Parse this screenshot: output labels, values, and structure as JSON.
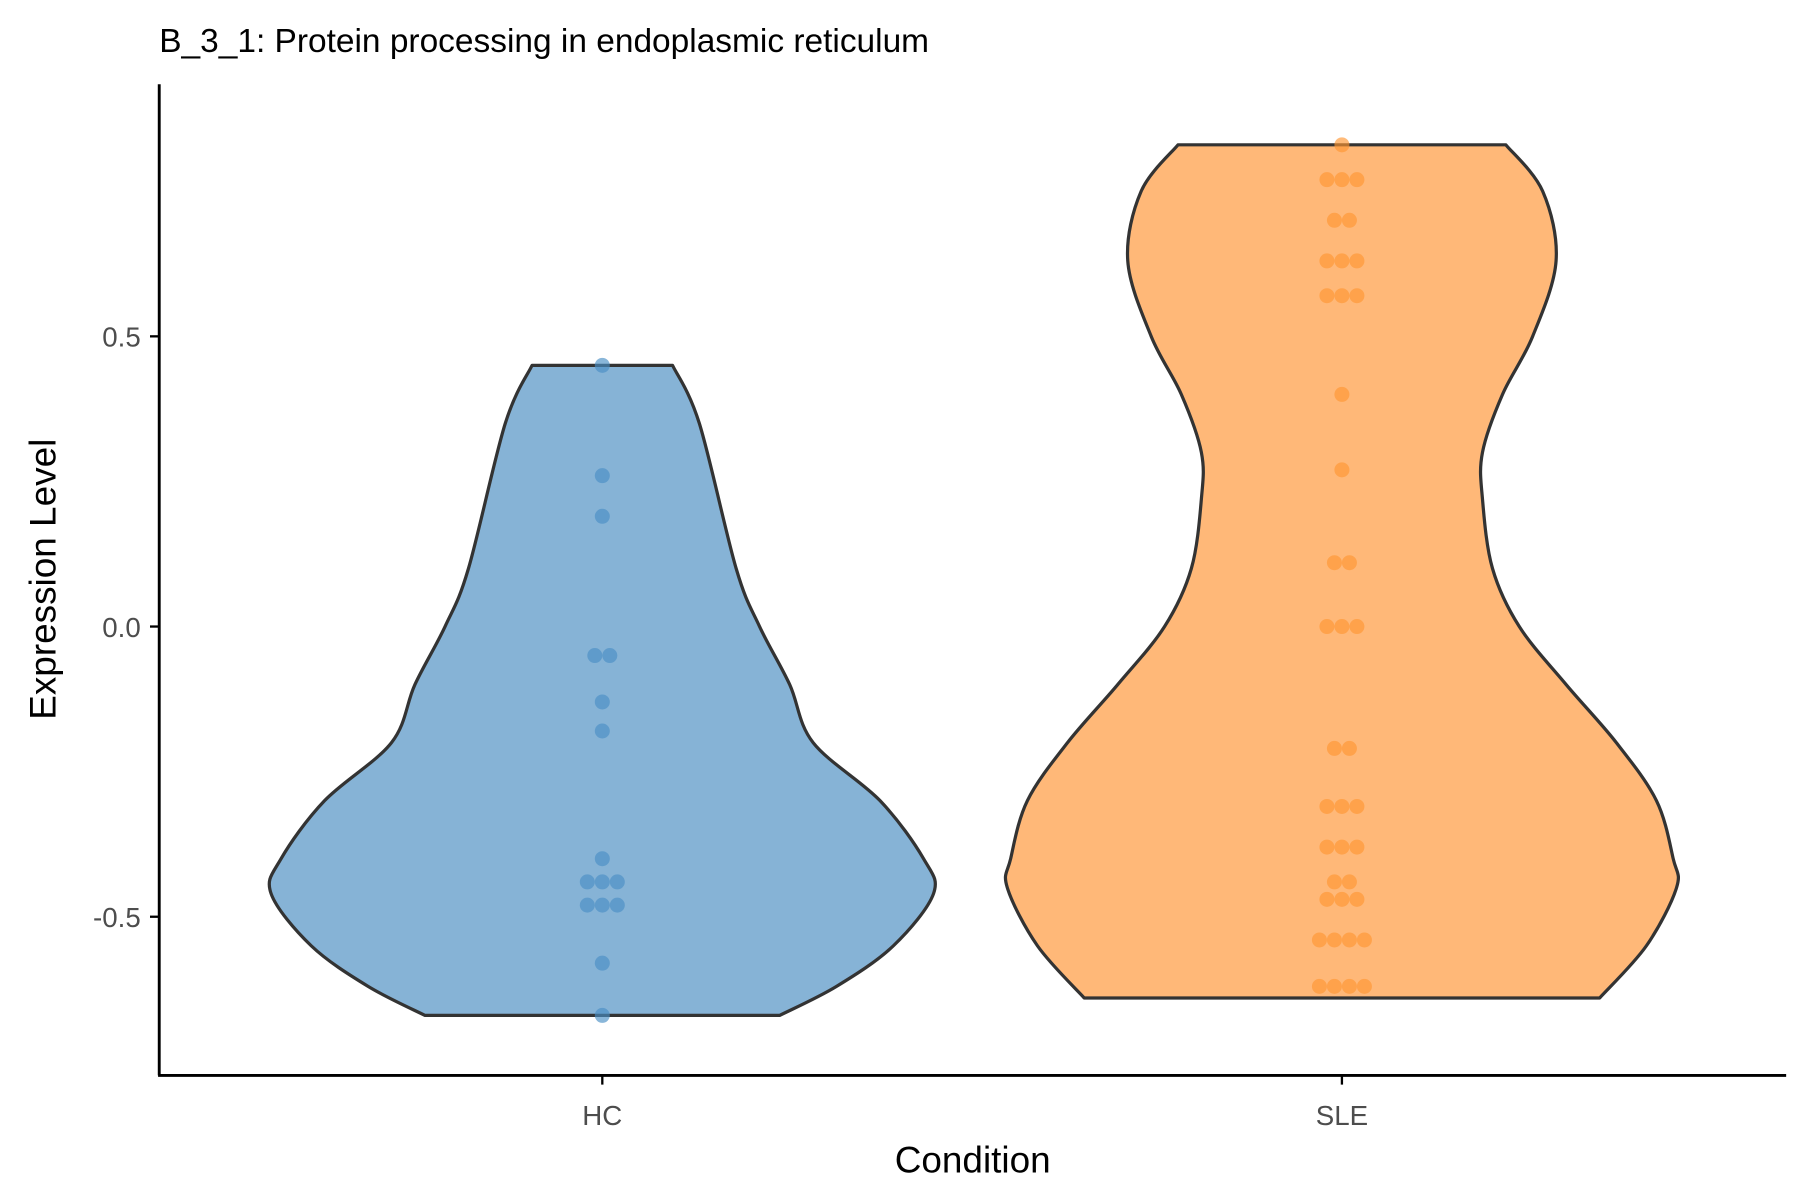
{
  "chart_data": {
    "type": "violin",
    "title": "B_3_1: Protein processing in endoplasmic reticulum",
    "xlabel": "Condition",
    "ylabel": "Expression Level",
    "ylim": [
      -0.78,
      1.0
    ],
    "yticks": [
      -0.5,
      0.0,
      0.5
    ],
    "ytick_labels": [
      "-0.5",
      "0.0",
      "0.5"
    ],
    "grid": false,
    "categories": [
      "HC",
      "SLE"
    ],
    "series": [
      {
        "name": "HC",
        "fill": "#86b3d6",
        "point_color": "#4a8fc4",
        "range": [
          -0.67,
          0.45
        ],
        "density_profile": {
          "y": [
            0.45,
            0.35,
            0.1,
            0.0,
            -0.1,
            -0.2,
            -0.3,
            -0.4,
            -0.46,
            -0.55,
            -0.62,
            -0.67
          ],
          "relative_width": [
            0.21,
            0.29,
            0.4,
            0.47,
            0.56,
            0.63,
            0.83,
            0.96,
            0.99,
            0.87,
            0.7,
            0.53
          ]
        },
        "values": [
          0.45,
          0.26,
          0.19,
          -0.05,
          -0.05,
          -0.13,
          -0.18,
          -0.4,
          -0.44,
          -0.44,
          -0.44,
          -0.48,
          -0.48,
          -0.48,
          -0.58,
          -0.67
        ]
      },
      {
        "name": "SLE",
        "fill": "#ffb878",
        "point_color": "#ff9632",
        "range": [
          -0.64,
          0.83
        ],
        "density_profile": {
          "y": [
            0.83,
            0.75,
            0.63,
            0.5,
            0.4,
            0.3,
            0.22,
            0.1,
            0.0,
            -0.1,
            -0.2,
            -0.3,
            -0.4,
            -0.45,
            -0.55,
            -0.64
          ],
          "relative_width": [
            0.49,
            0.6,
            0.64,
            0.57,
            0.48,
            0.42,
            0.42,
            0.45,
            0.53,
            0.67,
            0.82,
            0.94,
            0.99,
            1.0,
            0.91,
            0.77
          ]
        },
        "values": [
          0.83,
          0.77,
          0.77,
          0.77,
          0.7,
          0.7,
          0.63,
          0.63,
          0.63,
          0.57,
          0.57,
          0.57,
          0.4,
          0.27,
          0.11,
          0.11,
          0.0,
          0.0,
          0.0,
          -0.21,
          -0.21,
          -0.31,
          -0.31,
          -0.31,
          -0.38,
          -0.38,
          -0.38,
          -0.44,
          -0.44,
          -0.47,
          -0.47,
          -0.47,
          -0.54,
          -0.54,
          -0.54,
          -0.54,
          -0.62,
          -0.62,
          -0.62,
          -0.62
        ]
      }
    ]
  }
}
